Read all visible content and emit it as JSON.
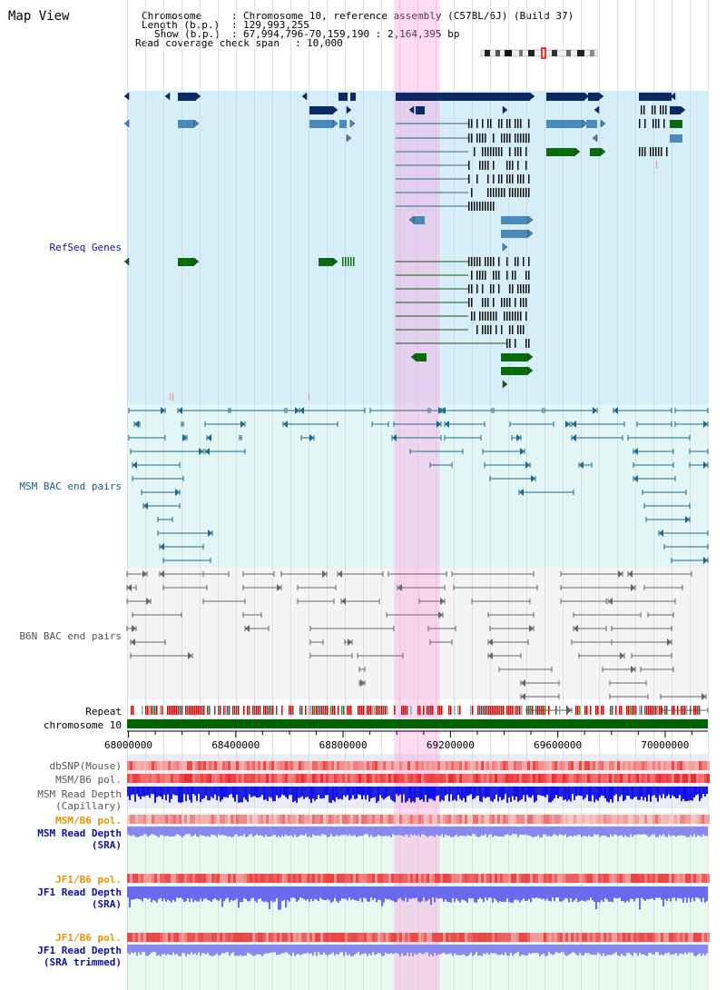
{
  "title": "Map View",
  "header": {
    "chromosome_key": "Chromosome",
    "chromosome_val": "Chromosome 10, reference assembly (C57BL/6J) (Build 37)",
    "length_key": "Length (b.p.)",
    "length_val": "129,993,255",
    "show_key": "Show (b.p.)",
    "show_val": "67,994,796-70,159,190 : 2,164,395 bp",
    "coverage_key": "Read coverage check span",
    "coverage_val": "10,000"
  },
  "tracks": {
    "refseq": "RefSeq Genes",
    "msm_bac": "MSM BAC end pairs",
    "b6n_bac": "B6N BAC end pairs",
    "repeat": "Repeat",
    "chromosome": "chromosome 10",
    "dbsnp": "dbSNP(Mouse)",
    "msm_b6_pol_1": "MSM/B6 pol.",
    "msm_depth_cap_1": "MSM Read Depth",
    "msm_depth_cap_2": "(Capillary)",
    "msm_b6_pol_2": "MSM/B6 pol.",
    "msm_depth_sra_1": "MSM Read Depth",
    "msm_depth_sra_2": "(SRA)",
    "jf1_pol_1": "JF1/B6 pol.",
    "jf1_depth_1": "JF1 Read Depth",
    "jf1_depth_2": "(SRA)",
    "jf1_pol_2": "JF1/B6 pol.",
    "jf1_depth_t1": "JF1 Read Depth",
    "jf1_depth_t2": "(SRA trimmed)"
  },
  "axis": {
    "ticks": [
      "68000000",
      "68400000",
      "68800000",
      "69200000",
      "69600000",
      "70000000"
    ],
    "tick_values": [
      68000000,
      68400000,
      68800000,
      69200000,
      69600000,
      70000000
    ],
    "start": 67994796,
    "end": 70159190
  },
  "highlight": {
    "start": 68990000,
    "end": 69160000
  },
  "colors": {
    "navy_gene": "#0a2a66",
    "blue_gene": "#4a8ab8",
    "green_gene": "#0b6b0b",
    "highlight": "#ff99dd",
    "chromosome_bar": "#006400",
    "depth_blue": "#0000ee",
    "depth_light": "#8080f0"
  }
}
